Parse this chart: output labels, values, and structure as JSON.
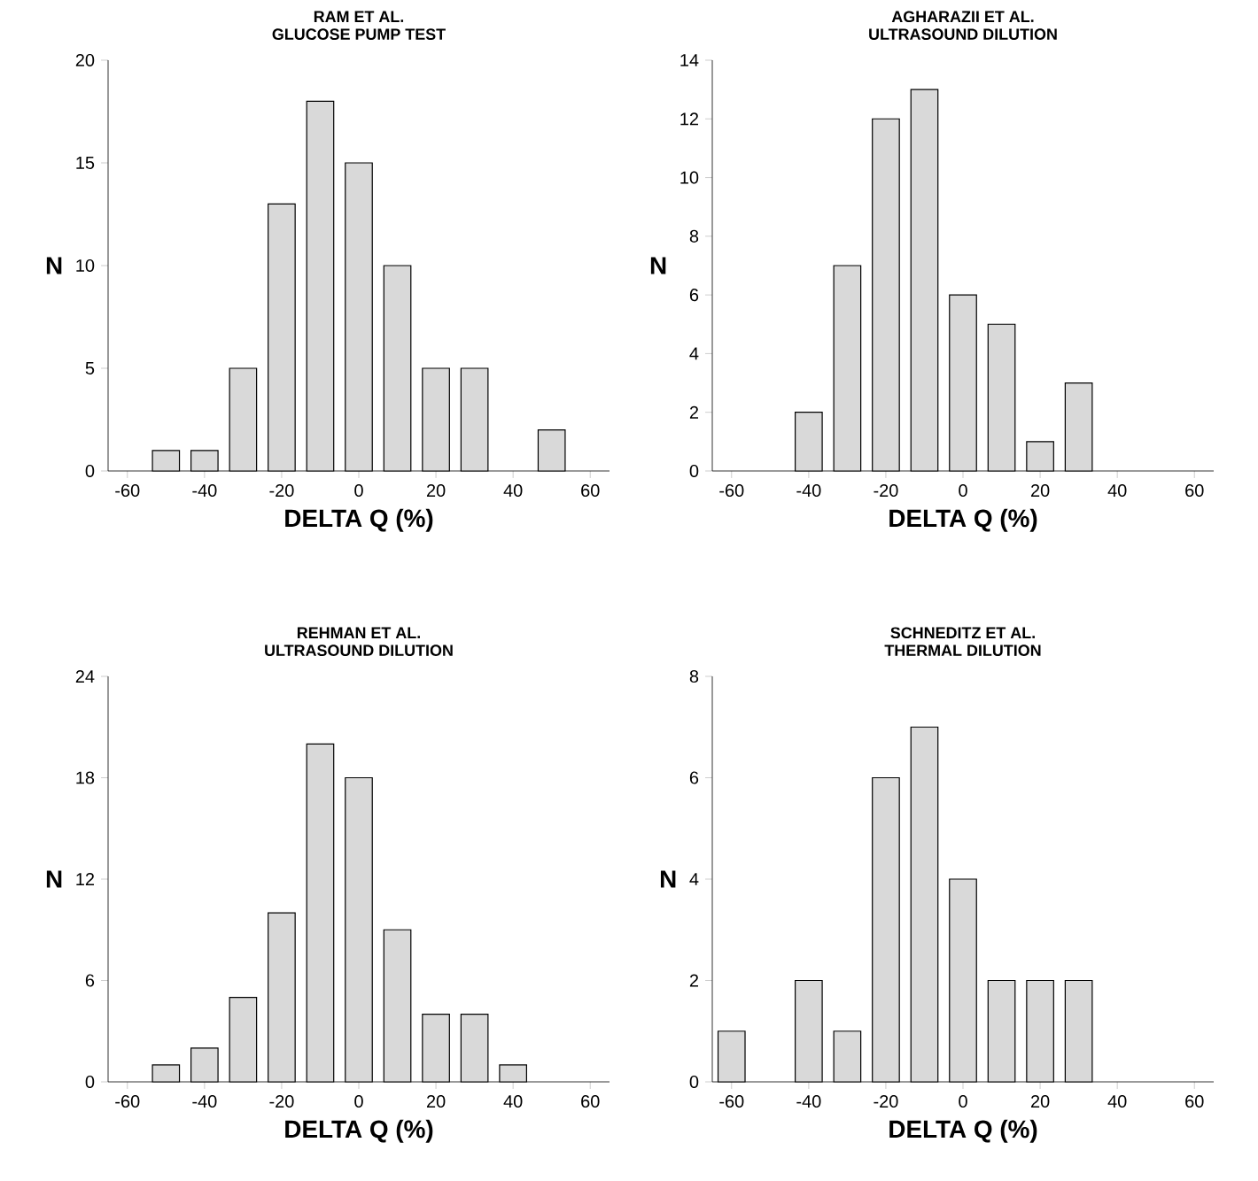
{
  "chart_data": [
    {
      "type": "bar",
      "title": "RAM ET AL.",
      "subtitle": "GLUCOSE PUMP TEST",
      "xlabel": "DELTA Q (%)",
      "ylabel": "N",
      "color": "#d9d9d9",
      "x": [
        -50,
        -40,
        -30,
        -20,
        -10,
        0,
        10,
        20,
        30,
        50
      ],
      "values": [
        1,
        1,
        5,
        13,
        18,
        15,
        10,
        5,
        5,
        2
      ],
      "xlim": [
        -65,
        65
      ],
      "xticks": [
        -60,
        -40,
        -20,
        0,
        20,
        40,
        60
      ],
      "ylim": [
        0,
        20
      ],
      "yticks": [
        0,
        5,
        10,
        15,
        20
      ]
    },
    {
      "type": "bar",
      "title": "AGHARAZII ET AL.",
      "subtitle": "ULTRASOUND DILUTION",
      "xlabel": "DELTA Q (%)",
      "ylabel": "N",
      "color": "#d9d9d9",
      "x": [
        -40,
        -30,
        -20,
        -10,
        0,
        10,
        20,
        30
      ],
      "values": [
        2,
        7,
        12,
        13,
        6,
        5,
        1,
        3
      ],
      "xlim": [
        -65,
        65
      ],
      "xticks": [
        -60,
        -40,
        -20,
        0,
        20,
        40,
        60
      ],
      "ylim": [
        0,
        14
      ],
      "yticks": [
        0,
        2,
        4,
        6,
        8,
        10,
        12,
        14
      ]
    },
    {
      "type": "bar",
      "title": "REHMAN ET AL.",
      "subtitle": "ULTRASOUND DILUTION",
      "xlabel": "DELTA Q (%)",
      "ylabel": "N",
      "color": "#d9d9d9",
      "x": [
        -50,
        -40,
        -30,
        -20,
        -10,
        0,
        10,
        20,
        30,
        40
      ],
      "values": [
        1,
        2,
        5,
        10,
        20,
        18,
        9,
        4,
        4,
        1
      ],
      "xlim": [
        -65,
        65
      ],
      "xticks": [
        -60,
        -40,
        -20,
        0,
        20,
        40,
        60
      ],
      "ylim": [
        0,
        24
      ],
      "yticks": [
        0,
        6,
        12,
        18,
        24
      ]
    },
    {
      "type": "bar",
      "title": "SCHNEDITZ ET AL.",
      "subtitle": "THERMAL DILUTION",
      "xlabel": "DELTA Q (%)",
      "ylabel": "N",
      "color": "#d9d9d9",
      "x": [
        -60,
        -40,
        -30,
        -20,
        -10,
        0,
        10,
        20,
        30
      ],
      "values": [
        1,
        2,
        1,
        6,
        7,
        4,
        2,
        2,
        2
      ],
      "xlim": [
        -65,
        65
      ],
      "xticks": [
        -60,
        -40,
        -20,
        0,
        20,
        40,
        60
      ],
      "ylim": [
        0,
        8
      ],
      "yticks": [
        0,
        2,
        4,
        6,
        8
      ]
    }
  ]
}
